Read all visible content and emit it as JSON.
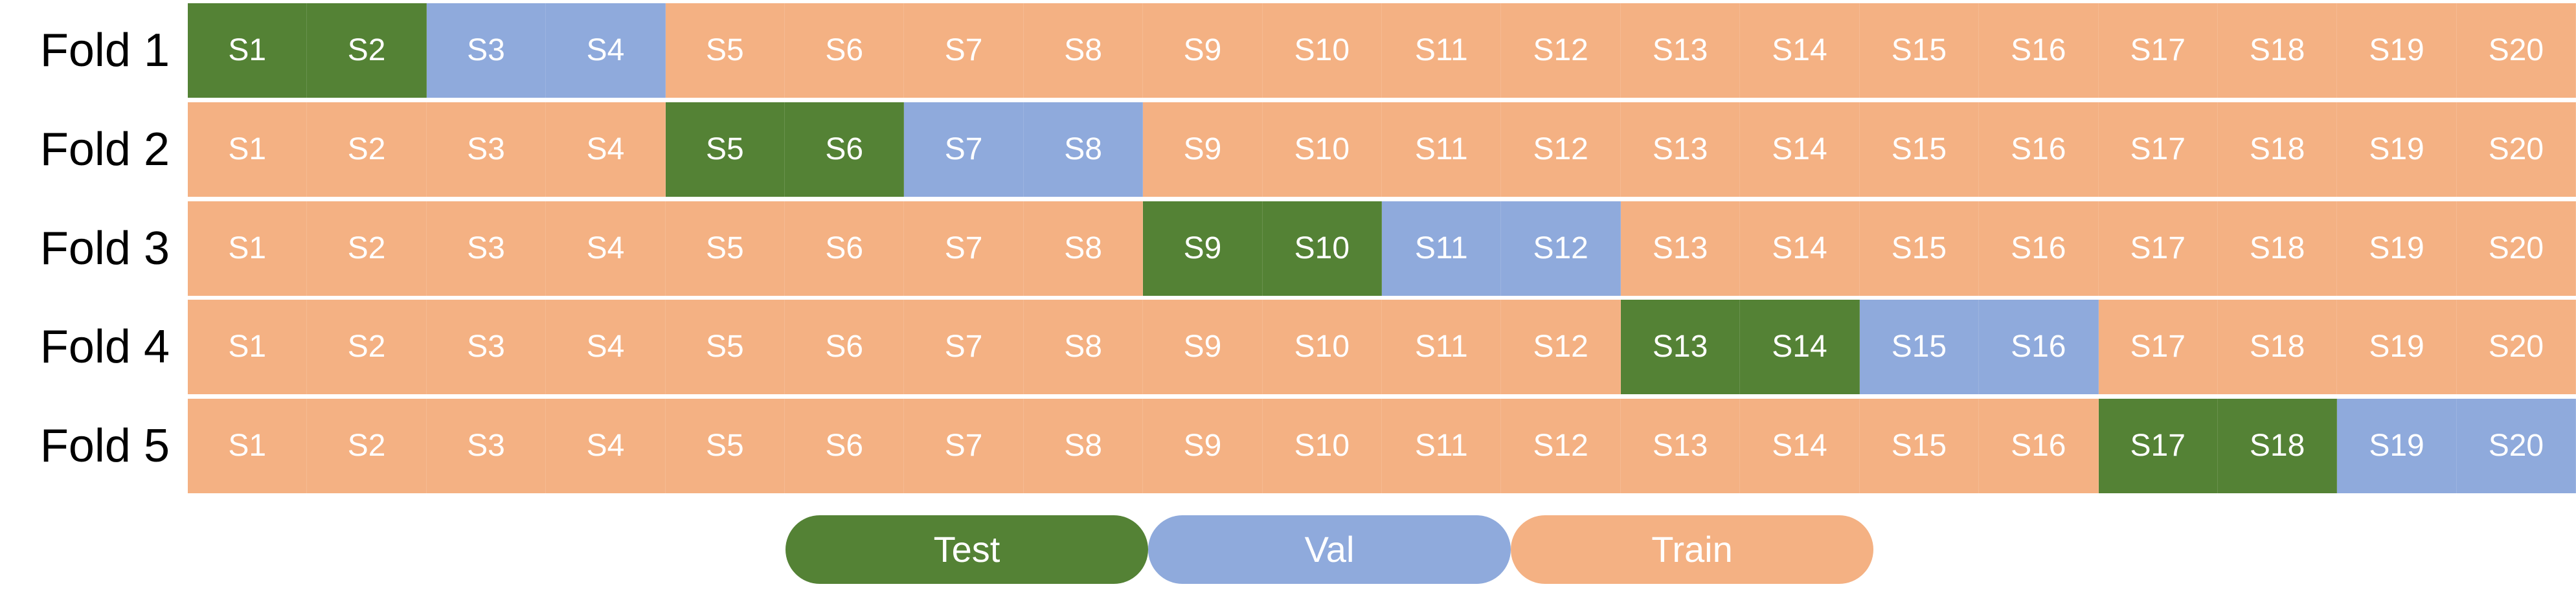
{
  "colors": {
    "test": "#548235",
    "val": "#8FAADC",
    "train": "#F4B183"
  },
  "legend": [
    {
      "role": "test",
      "label": "Test"
    },
    {
      "role": "val",
      "label": "Val"
    },
    {
      "role": "train",
      "label": "Train"
    }
  ],
  "folds": [
    {
      "label": "Fold 1",
      "cells": [
        {
          "text": "S1",
          "role": "test"
        },
        {
          "text": "S2",
          "role": "test"
        },
        {
          "text": "S3",
          "role": "val"
        },
        {
          "text": "S4",
          "role": "val"
        },
        {
          "text": "S5",
          "role": "train"
        },
        {
          "text": "S6",
          "role": "train"
        },
        {
          "text": "S7",
          "role": "train"
        },
        {
          "text": "S8",
          "role": "train"
        },
        {
          "text": "S9",
          "role": "train"
        },
        {
          "text": "S10",
          "role": "train"
        },
        {
          "text": "S11",
          "role": "train"
        },
        {
          "text": "S12",
          "role": "train"
        },
        {
          "text": "S13",
          "role": "train"
        },
        {
          "text": "S14",
          "role": "train"
        },
        {
          "text": "S15",
          "role": "train"
        },
        {
          "text": "S16",
          "role": "train"
        },
        {
          "text": "S17",
          "role": "train"
        },
        {
          "text": "S18",
          "role": "train"
        },
        {
          "text": "S19",
          "role": "train"
        },
        {
          "text": "S20",
          "role": "train"
        }
      ]
    },
    {
      "label": "Fold 2",
      "cells": [
        {
          "text": "S1",
          "role": "train"
        },
        {
          "text": "S2",
          "role": "train"
        },
        {
          "text": "S3",
          "role": "train"
        },
        {
          "text": "S4",
          "role": "train"
        },
        {
          "text": "S5",
          "role": "test"
        },
        {
          "text": "S6",
          "role": "test"
        },
        {
          "text": "S7",
          "role": "val"
        },
        {
          "text": "S8",
          "role": "val"
        },
        {
          "text": "S9",
          "role": "train"
        },
        {
          "text": "S10",
          "role": "train"
        },
        {
          "text": "S11",
          "role": "train"
        },
        {
          "text": "S12",
          "role": "train"
        },
        {
          "text": "S13",
          "role": "train"
        },
        {
          "text": "S14",
          "role": "train"
        },
        {
          "text": "S15",
          "role": "train"
        },
        {
          "text": "S16",
          "role": "train"
        },
        {
          "text": "S17",
          "role": "train"
        },
        {
          "text": "S18",
          "role": "train"
        },
        {
          "text": "S19",
          "role": "train"
        },
        {
          "text": "S20",
          "role": "train"
        }
      ]
    },
    {
      "label": "Fold 3",
      "cells": [
        {
          "text": "S1",
          "role": "train"
        },
        {
          "text": "S2",
          "role": "train"
        },
        {
          "text": "S3",
          "role": "train"
        },
        {
          "text": "S4",
          "role": "train"
        },
        {
          "text": "S5",
          "role": "train"
        },
        {
          "text": "S6",
          "role": "train"
        },
        {
          "text": "S7",
          "role": "train"
        },
        {
          "text": "S8",
          "role": "train"
        },
        {
          "text": "S9",
          "role": "test"
        },
        {
          "text": "S10",
          "role": "test"
        },
        {
          "text": "S11",
          "role": "val"
        },
        {
          "text": "S12",
          "role": "val"
        },
        {
          "text": "S13",
          "role": "train"
        },
        {
          "text": "S14",
          "role": "train"
        },
        {
          "text": "S15",
          "role": "train"
        },
        {
          "text": "S16",
          "role": "train"
        },
        {
          "text": "S17",
          "role": "train"
        },
        {
          "text": "S18",
          "role": "train"
        },
        {
          "text": "S19",
          "role": "train"
        },
        {
          "text": "S20",
          "role": "train"
        }
      ]
    },
    {
      "label": "Fold 4",
      "cells": [
        {
          "text": "S1",
          "role": "train"
        },
        {
          "text": "S2",
          "role": "train"
        },
        {
          "text": "S3",
          "role": "train"
        },
        {
          "text": "S4",
          "role": "train"
        },
        {
          "text": "S5",
          "role": "train"
        },
        {
          "text": "S6",
          "role": "train"
        },
        {
          "text": "S7",
          "role": "train"
        },
        {
          "text": "S8",
          "role": "train"
        },
        {
          "text": "S9",
          "role": "train"
        },
        {
          "text": "S10",
          "role": "train"
        },
        {
          "text": "S11",
          "role": "train"
        },
        {
          "text": "S12",
          "role": "train"
        },
        {
          "text": "S13",
          "role": "test"
        },
        {
          "text": "S14",
          "role": "test"
        },
        {
          "text": "S15",
          "role": "val"
        },
        {
          "text": "S16",
          "role": "val"
        },
        {
          "text": "S17",
          "role": "train"
        },
        {
          "text": "S18",
          "role": "train"
        },
        {
          "text": "S19",
          "role": "train"
        },
        {
          "text": "S20",
          "role": "train"
        }
      ]
    },
    {
      "label": "Fold 5",
      "cells": [
        {
          "text": "S1",
          "role": "train"
        },
        {
          "text": "S2",
          "role": "train"
        },
        {
          "text": "S3",
          "role": "train"
        },
        {
          "text": "S4",
          "role": "train"
        },
        {
          "text": "S5",
          "role": "train"
        },
        {
          "text": "S6",
          "role": "train"
        },
        {
          "text": "S7",
          "role": "train"
        },
        {
          "text": "S8",
          "role": "train"
        },
        {
          "text": "S9",
          "role": "train"
        },
        {
          "text": "S10",
          "role": "train"
        },
        {
          "text": "S11",
          "role": "train"
        },
        {
          "text": "S12",
          "role": "train"
        },
        {
          "text": "S13",
          "role": "train"
        },
        {
          "text": "S14",
          "role": "train"
        },
        {
          "text": "S15",
          "role": "train"
        },
        {
          "text": "S16",
          "role": "train"
        },
        {
          "text": "S17",
          "role": "test"
        },
        {
          "text": "S18",
          "role": "test"
        },
        {
          "text": "S19",
          "role": "val"
        },
        {
          "text": "S20",
          "role": "val"
        }
      ]
    }
  ]
}
